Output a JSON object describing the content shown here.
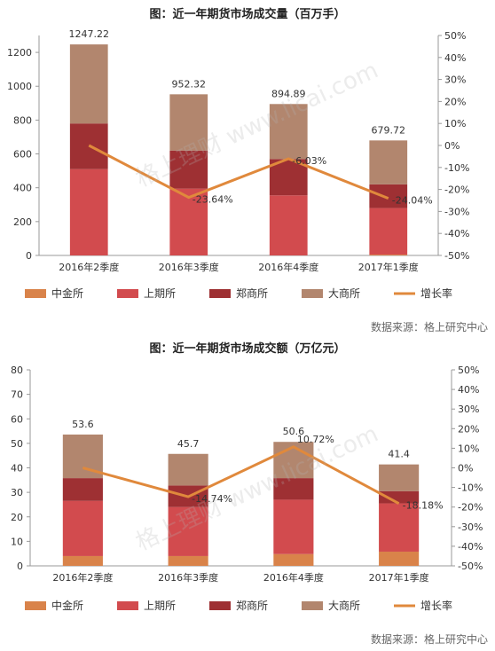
{
  "colors": {
    "cffex": "#D9834A",
    "shfe": "#D24B4E",
    "czce": "#9E3033",
    "dce": "#B2866E",
    "growth": "#E0893C",
    "axis": "#999999"
  },
  "watermark": "格上理财 www.licai.com",
  "chart_data": [
    {
      "type": "bar",
      "title": "图：近一年期货市场成交量（百万手）",
      "source": "数据来源：格上研究中心",
      "categories": [
        "2016年2季度",
        "2016年3季度",
        "2016年4季度",
        "2017年1季度"
      ],
      "stacked": true,
      "series": [
        {
          "name": "中金所",
          "values": [
            0,
            0,
            0,
            5
          ]
        },
        {
          "name": "上期所",
          "values": [
            510,
            395,
            355,
            275
          ]
        },
        {
          "name": "郑商所",
          "values": [
            270,
            225,
            215,
            140
          ]
        },
        {
          "name": "大商所",
          "values": [
            467.22,
            332.32,
            324.89,
            259.72
          ]
        }
      ],
      "totals": [
        "1247.22",
        "952.32",
        "894.89",
        "679.72"
      ],
      "line": {
        "name": "增长率",
        "values": [
          0,
          -23.64,
          -6.03,
          -24.04
        ],
        "labels": [
          "",
          "-23.64%",
          "-6.03%",
          "-24.04%"
        ]
      },
      "yticks": [
        "0",
        "200",
        "400",
        "600",
        "800",
        "1000",
        "1200"
      ],
      "ylim": [
        0,
        1300
      ],
      "y2ticks": [
        "-50%",
        "-40%",
        "-30%",
        "-20%",
        "-10%",
        "0%",
        "10%",
        "20%",
        "30%",
        "40%",
        "50%"
      ],
      "y2lim": [
        -50,
        50
      ],
      "legend": "bottom"
    },
    {
      "type": "bar",
      "title": "图：近一年期货市场成交额（万亿元）",
      "source": "数据来源：格上研究中心",
      "categories": [
        "2016年2季度",
        "2016年3季度",
        "2016年4季度",
        "2017年1季度"
      ],
      "stacked": true,
      "series": [
        {
          "name": "中金所",
          "values": [
            4,
            4,
            4.8,
            5.8
          ]
        },
        {
          "name": "上期所",
          "values": [
            22.5,
            20,
            22.2,
            19.7
          ]
        },
        {
          "name": "郑商所",
          "values": [
            9.3,
            8.8,
            8.8,
            5
          ]
        },
        {
          "name": "大商所",
          "values": [
            17.8,
            12.9,
            14.8,
            10.9
          ]
        }
      ],
      "totals": [
        "53.6",
        "45.7",
        "50.6",
        "41.4"
      ],
      "line": {
        "name": "增长率",
        "values": [
          0,
          -14.74,
          10.72,
          -18.18
        ],
        "labels": [
          "",
          "-14.74%",
          "10.72%",
          "-18.18%"
        ]
      },
      "yticks": [
        "0",
        "10",
        "20",
        "30",
        "40",
        "50",
        "60",
        "70",
        "80"
      ],
      "ylim": [
        0,
        80
      ],
      "y2ticks": [
        "-50%",
        "-40%",
        "-30%",
        "-20%",
        "-10%",
        "0%",
        "10%",
        "20%",
        "30%",
        "40%",
        "50%"
      ],
      "y2lim": [
        -50,
        50
      ],
      "legend": "bottom"
    }
  ]
}
